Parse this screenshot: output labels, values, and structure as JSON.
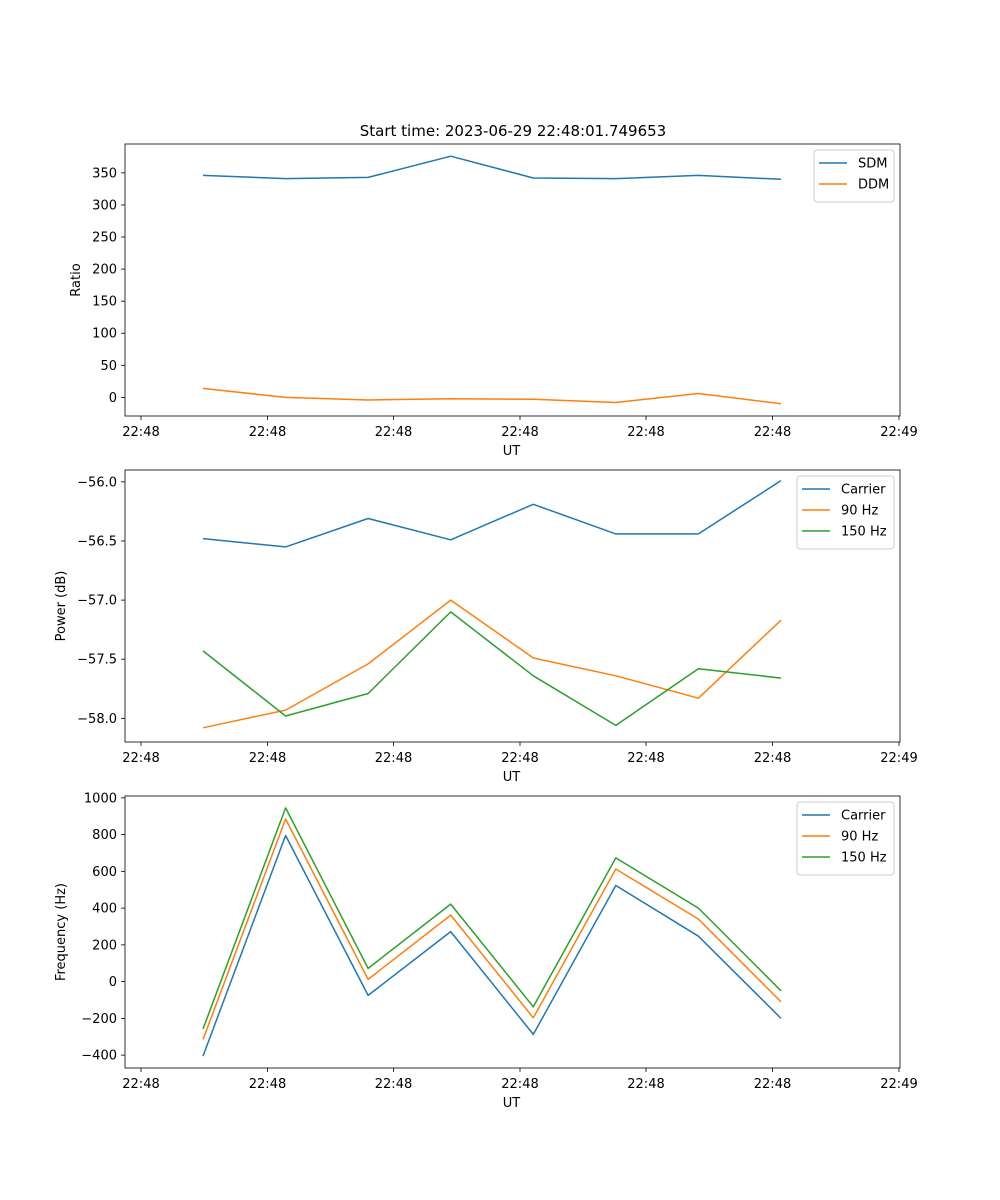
{
  "figure_title": "Start time: 2023-06-29 22:48:01.749653",
  "colors": {
    "blue": "#1f77b4",
    "orange": "#ff7f0e",
    "green": "#2ca02c"
  },
  "chart_data": [
    {
      "type": "line",
      "xlabel": "UT",
      "ylabel": "Ratio",
      "xticklabels": [
        "22:48",
        "22:48",
        "22:48",
        "22:48",
        "22:48",
        "22:48",
        "22:49"
      ],
      "yticks": [
        0,
        50,
        100,
        150,
        200,
        250,
        300,
        350
      ],
      "yticklabels": [
        "0",
        "50",
        "100",
        "150",
        "200",
        "250",
        "300",
        "350"
      ],
      "ylim": [
        -29,
        395
      ],
      "legend": "top-right",
      "grid": false,
      "series": [
        {
          "name": "SDM",
          "color": "#1f77b4",
          "values": [
            346,
            341,
            343,
            376,
            342,
            341,
            346,
            340
          ]
        },
        {
          "name": "DDM",
          "color": "#ff7f0e",
          "values": [
            14,
            0,
            -4,
            -2,
            -3,
            -8,
            6,
            -10
          ]
        }
      ]
    },
    {
      "type": "line",
      "xlabel": "UT",
      "ylabel": "Power (dB)",
      "xticklabels": [
        "22:48",
        "22:48",
        "22:48",
        "22:48",
        "22:48",
        "22:48",
        "22:49"
      ],
      "yticks": [
        -58.0,
        -57.5,
        -57.0,
        -56.5,
        -56.0
      ],
      "yticklabels": [
        "−58.0",
        "−57.5",
        "−57.0",
        "−56.5",
        "−56.0"
      ],
      "ylim": [
        -58.2,
        -55.9
      ],
      "legend": "top-right",
      "grid": false,
      "series": [
        {
          "name": "Carrier",
          "color": "#1f77b4",
          "values": [
            -56.48,
            -56.55,
            -56.31,
            -56.49,
            -56.19,
            -56.44,
            -56.44,
            -55.99
          ]
        },
        {
          "name": "90 Hz",
          "color": "#ff7f0e",
          "values": [
            -58.08,
            -57.93,
            -57.54,
            -57.0,
            -57.49,
            -57.64,
            -57.83,
            -57.17
          ]
        },
        {
          "name": "150 Hz",
          "color": "#2ca02c",
          "values": [
            -57.43,
            -57.98,
            -57.79,
            -57.1,
            -57.64,
            -58.06,
            -57.58,
            -57.66
          ]
        }
      ]
    },
    {
      "type": "line",
      "xlabel": "UT",
      "ylabel": "Frequency (Hz)",
      "xticklabels": [
        "22:48",
        "22:48",
        "22:48",
        "22:48",
        "22:48",
        "22:48",
        "22:49"
      ],
      "yticks": [
        -400,
        -200,
        0,
        200,
        400,
        600,
        800,
        1000
      ],
      "yticklabels": [
        "−400",
        "−200",
        "0",
        "200",
        "400",
        "600",
        "800",
        "1000"
      ],
      "ylim": [
        -470,
        1010
      ],
      "legend": "top-right",
      "grid": false,
      "series": [
        {
          "name": "Carrier",
          "color": "#1f77b4",
          "values": [
            -405,
            795,
            -75,
            272,
            -287,
            523,
            247,
            -200
          ]
        },
        {
          "name": "90 Hz",
          "color": "#ff7f0e",
          "values": [
            -315,
            885,
            12,
            362,
            -197,
            613,
            340,
            -110
          ]
        },
        {
          "name": "150 Hz",
          "color": "#2ca02c",
          "values": [
            -258,
            945,
            72,
            422,
            -137,
            673,
            400,
            -50
          ]
        }
      ]
    }
  ]
}
